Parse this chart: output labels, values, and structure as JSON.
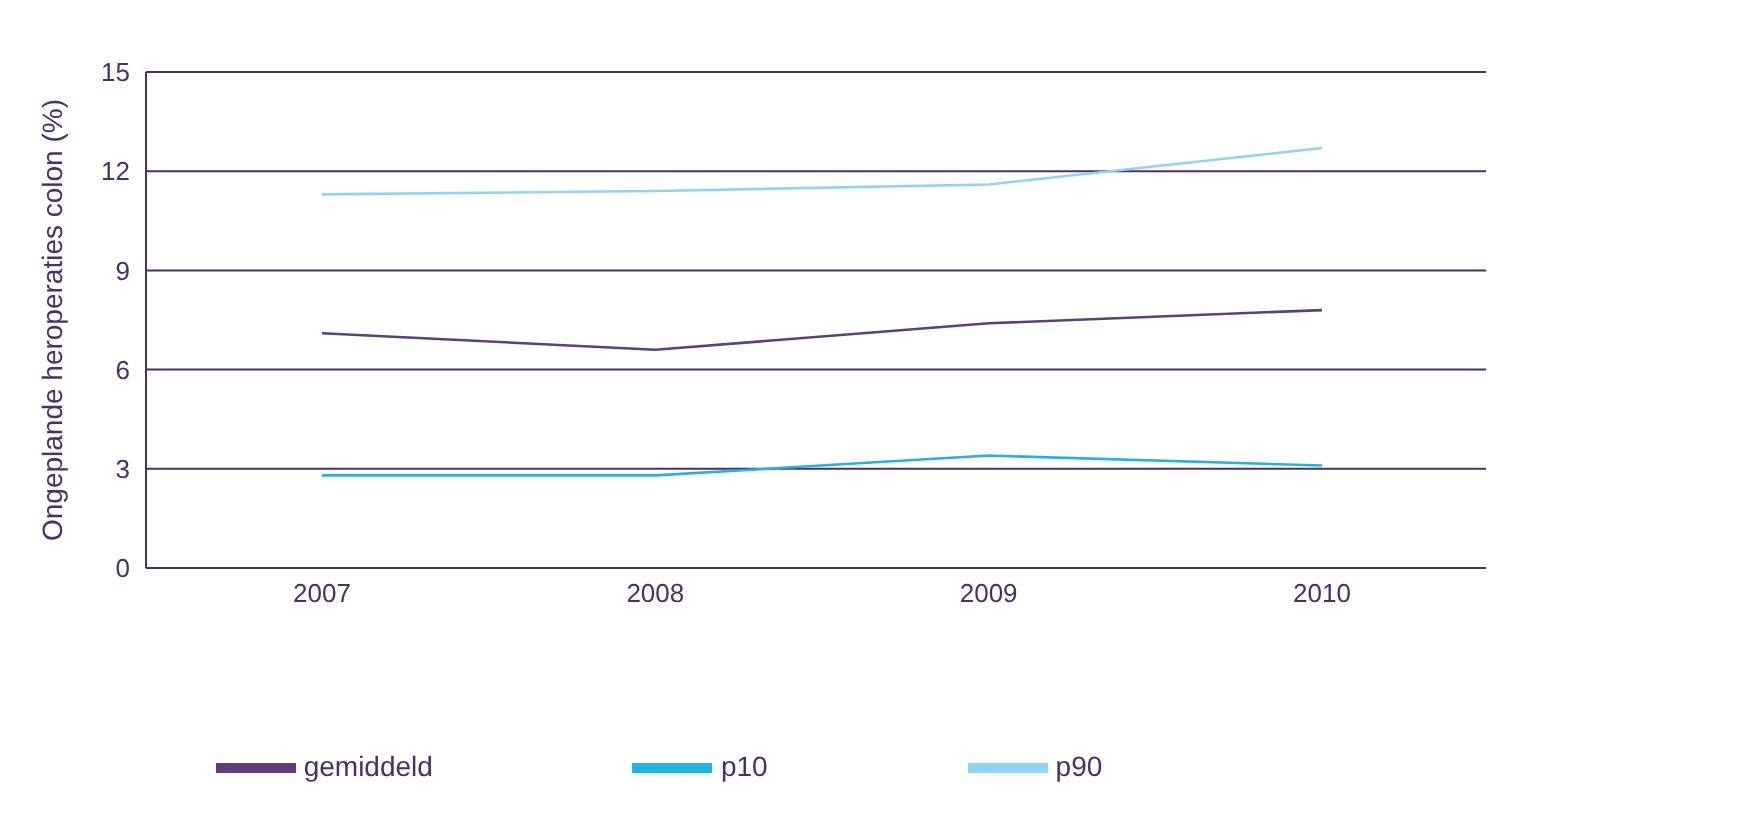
{
  "chart_data": {
    "type": "line",
    "ylabel": "Ongeplande heroperaties colon (%)",
    "categories": [
      "2007",
      "2008",
      "2009",
      "2010"
    ],
    "series": [
      {
        "name": "gemiddeld",
        "color": "#5b3f7e",
        "values": [
          7.1,
          6.6,
          7.4,
          7.8
        ]
      },
      {
        "name": "p90",
        "color": "#8fd4f2",
        "values": [
          11.3,
          11.4,
          11.6,
          12.7
        ]
      },
      {
        "name": "p10",
        "color": "#1fb3e6",
        "values": [
          2.8,
          2.8,
          3.4,
          3.1
        ]
      }
    ],
    "ylim": [
      0,
      15
    ],
    "yticks": [
      0,
      3,
      6,
      9,
      12,
      15
    ],
    "grid": "y",
    "legend": "bottom",
    "marker": "none",
    "line_style": "solid"
  }
}
